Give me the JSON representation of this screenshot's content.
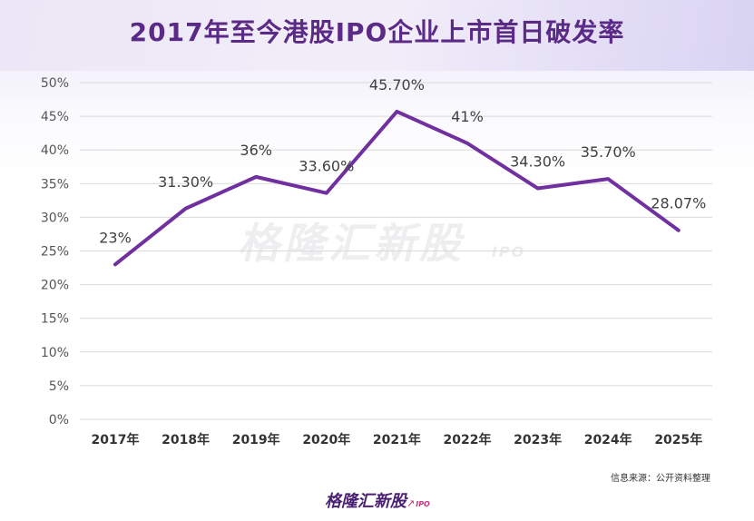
{
  "page": {
    "title": "2017年至今港股IPO企业上市首日破发率",
    "source": "信息来源：公开资料整理",
    "watermark": {
      "brand": "格隆汇新股",
      "tag": "IPO"
    },
    "footer_logo": {
      "brand": "格隆汇新股",
      "tag": "IPO"
    }
  },
  "colors": {
    "line": "#7030a0",
    "title": "#5b2a86",
    "grid": "#d9d9d9"
  },
  "chart_data": {
    "type": "line",
    "title": "2017年至今港股IPO企业上市首日破发率",
    "categories": [
      "2017年",
      "2018年",
      "2019年",
      "2020年",
      "2021年",
      "2022年",
      "2023年",
      "2024年",
      "2025年"
    ],
    "series": [
      {
        "name": "破发率",
        "values": [
          23,
          31.3,
          36,
          33.6,
          45.7,
          41,
          34.3,
          35.7,
          28.07
        ],
        "labels": [
          "23%",
          "31.30%",
          "36%",
          "33.60%",
          "45.70%",
          "41%",
          "34.30%",
          "35.70%",
          "28.07%"
        ]
      }
    ],
    "ylim": [
      0,
      50
    ],
    "yticks": [
      0,
      5,
      10,
      15,
      20,
      25,
      30,
      35,
      40,
      45,
      50
    ],
    "ytick_labels": [
      "0%",
      "5%",
      "10%",
      "15%",
      "20%",
      "25%",
      "30%",
      "35%",
      "40%",
      "45%",
      "50%"
    ],
    "grid": true,
    "xlabel": "",
    "ylabel": ""
  }
}
